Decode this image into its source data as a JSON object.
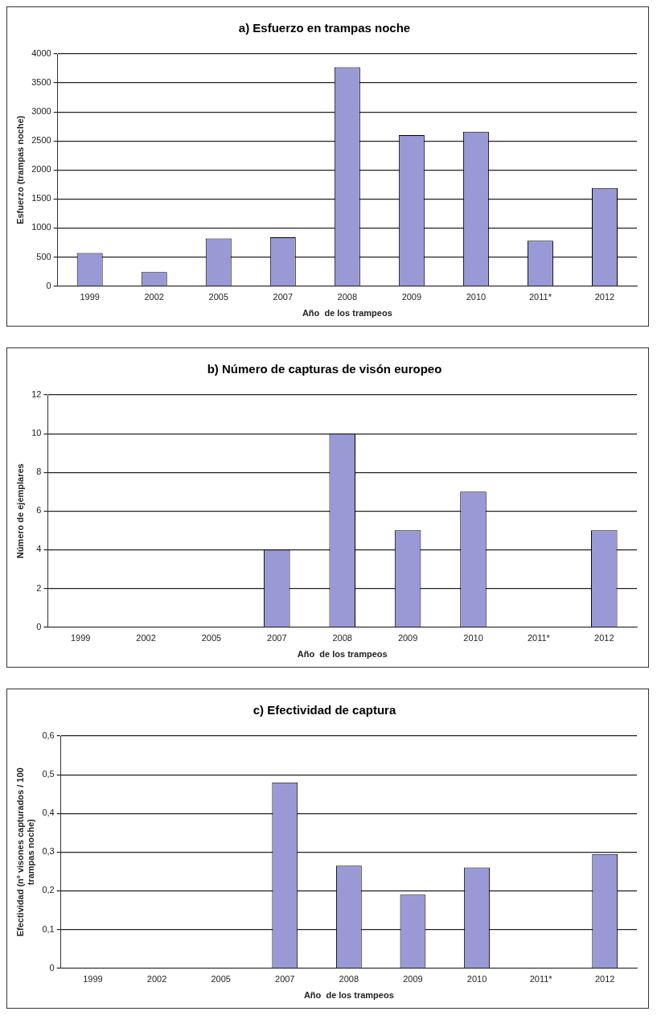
{
  "chart_data": [
    {
      "type": "bar",
      "title": "a) Esfuerzo en trampas noche",
      "xlabel": "Año  de los trampeos",
      "ylabel": "Esfuerzo (trampas noche)",
      "categories": [
        "1999",
        "2002",
        "2005",
        "2007",
        "2008",
        "2009",
        "2010",
        "2011*",
        "2012"
      ],
      "values": [
        570,
        240,
        820,
        840,
        3770,
        2600,
        2660,
        780,
        1690
      ],
      "color": "#9999d6",
      "ylim": [
        0,
        4000
      ],
      "yticks": [
        0,
        500,
        1000,
        1500,
        2000,
        2500,
        3000,
        3500,
        4000
      ],
      "grid": "y"
    },
    {
      "type": "bar",
      "title": "b) Número de capturas de visón europeo",
      "xlabel": "Año  de los trampeos",
      "ylabel": "Número de ejemplares",
      "categories": [
        "1999",
        "2002",
        "2005",
        "2007",
        "2008",
        "2009",
        "2010",
        "2011*",
        "2012"
      ],
      "values": [
        0,
        0,
        0,
        4,
        10,
        5,
        7,
        0,
        5
      ],
      "color": "#9999d6",
      "ylim": [
        0,
        12
      ],
      "yticks": [
        0,
        2,
        4,
        6,
        8,
        10,
        12
      ],
      "grid": "y"
    },
    {
      "type": "bar",
      "title": "c) Efectividad de captura",
      "xlabel": "Año  de los trampeos",
      "ylabel": "Efectividad (nº visones capturados / 100 trampas noche)",
      "categories": [
        "1999",
        "2002",
        "2005",
        "2007",
        "2008",
        "2009",
        "2010",
        "2011*",
        "2012"
      ],
      "values": [
        0,
        0,
        0,
        0.48,
        0.265,
        0.19,
        0.26,
        0,
        0.295
      ],
      "color": "#9999d6",
      "ylim": [
        0,
        0.6
      ],
      "yticks": [
        {
          "value": 0,
          "label": "0"
        },
        {
          "value": 0.1,
          "label": "0,1"
        },
        {
          "value": 0.2,
          "label": "0,2"
        },
        {
          "value": 0.3,
          "label": "0,3"
        },
        {
          "value": 0.4,
          "label": "0,4"
        },
        {
          "value": 0.5,
          "label": "0,5"
        },
        {
          "value": 0.6,
          "label": "0,6"
        }
      ],
      "grid": "y"
    }
  ]
}
